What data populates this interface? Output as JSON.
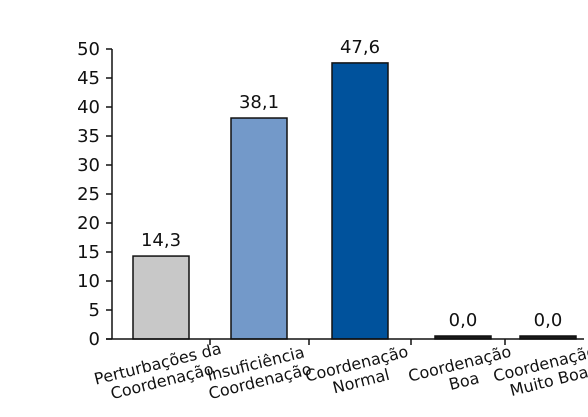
{
  "chart_data": {
    "type": "bar",
    "categories": [
      "Perturbações da Coordenação",
      "Insuficiência Coordenação",
      "Coordenação Normal",
      "Coordenação Boa",
      "Coordenação Muito Boa"
    ],
    "category_lines": [
      [
        "Perturbações da",
        "Coordenação"
      ],
      [
        "Insuficiência",
        "Coordenação"
      ],
      [
        "Coordenação",
        "Normal"
      ],
      [
        "Coordenação",
        "Boa"
      ],
      [
        "Coordenação",
        "Muito Boa"
      ]
    ],
    "values": [
      14.3,
      38.1,
      47.6,
      0.0,
      0.0
    ],
    "value_labels": [
      "14,3",
      "38,1",
      "47,6",
      "0,0",
      "0,0"
    ],
    "bar_colors": [
      "#c8c8c8",
      "#7399c9",
      "#00529c",
      "#1a1a1a",
      "#1a1a1a"
    ],
    "ylim": [
      0,
      50
    ],
    "yticks": [
      "0",
      "5",
      "10",
      "15",
      "20",
      "25",
      "30",
      "35",
      "40",
      "45",
      "50"
    ],
    "title": "",
    "xlabel": "",
    "ylabel": "",
    "grid": false,
    "legend": "none"
  }
}
